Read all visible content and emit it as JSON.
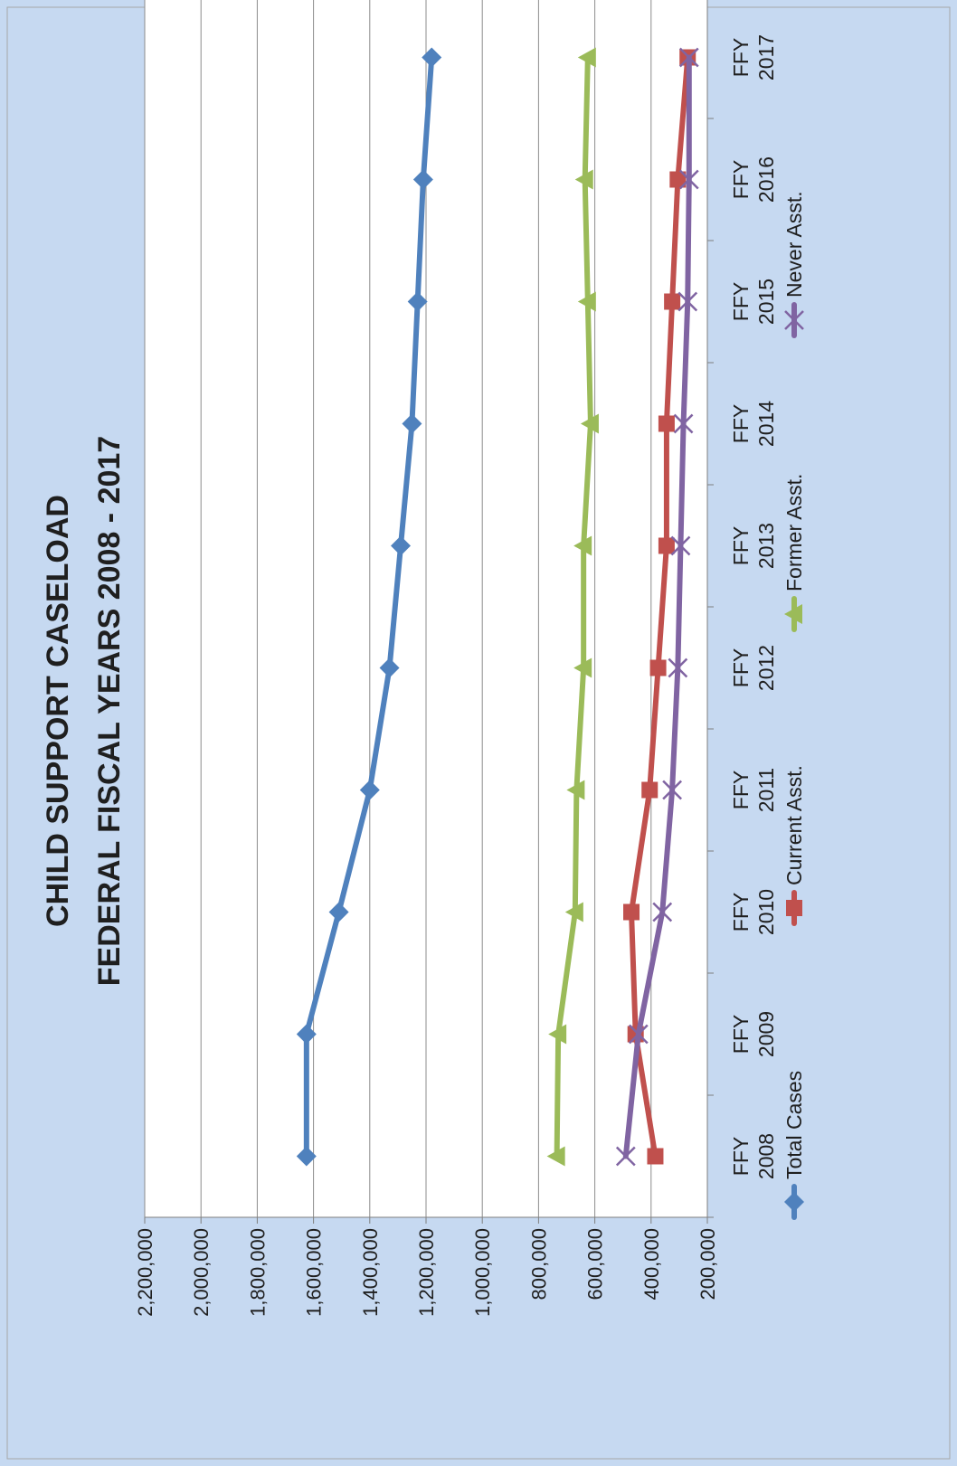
{
  "chart_data": {
    "type": "line",
    "title_lines": [
      "CHILD SUPPORT CASELOAD",
      "FEDERAL FISCAL YEARS 2008 - 2017"
    ],
    "categories": [
      [
        "FFY",
        "2008"
      ],
      [
        "FFY",
        "2009"
      ],
      [
        "FFY",
        "2010"
      ],
      [
        "FFY",
        "2011"
      ],
      [
        "FFY",
        "2012"
      ],
      [
        "FFY",
        "2013"
      ],
      [
        "FFY",
        "2014"
      ],
      [
        "FFY",
        "2015"
      ],
      [
        "FFY",
        "2016"
      ],
      [
        "FFY",
        "2017"
      ]
    ],
    "ylim": [
      200000,
      2200000
    ],
    "y_ticks": [
      "200,000",
      "400,000",
      "600,000",
      "800,000",
      "1,000,000",
      "1,200,000",
      "1,400,000",
      "1,600,000",
      "1,800,000",
      "2,000,000",
      "2,200,000"
    ],
    "y_tick_values": [
      200000,
      400000,
      600000,
      800000,
      1000000,
      1200000,
      1400000,
      1600000,
      1800000,
      2000000,
      2200000
    ],
    "grid": true,
    "orientation": "rotated 90 degrees counter-clockwise",
    "legend_position": "bottom",
    "series": [
      {
        "name": "Total Cases",
        "color": "#4f81bd",
        "marker": "diamond",
        "values": [
          1625000,
          1625000,
          1510000,
          1400000,
          1330000,
          1290000,
          1250000,
          1230000,
          1210000,
          1180000
        ]
      },
      {
        "name": "Current Asst.",
        "color": "#c0504d",
        "marker": "square",
        "values": [
          385000,
          455000,
          470000,
          405000,
          375000,
          345000,
          345000,
          325000,
          305000,
          270000
        ]
      },
      {
        "name": "Former Asst.",
        "color": "#9bbb59",
        "marker": "triangle",
        "values": [
          735000,
          730000,
          670000,
          665000,
          640000,
          640000,
          615000,
          625000,
          635000,
          625000
        ]
      },
      {
        "name": "Never Asst.",
        "color": "#8064a2",
        "marker": "x",
        "values": [
          490000,
          445000,
          360000,
          325000,
          305000,
          295000,
          285000,
          270000,
          265000,
          265000
        ]
      }
    ]
  }
}
